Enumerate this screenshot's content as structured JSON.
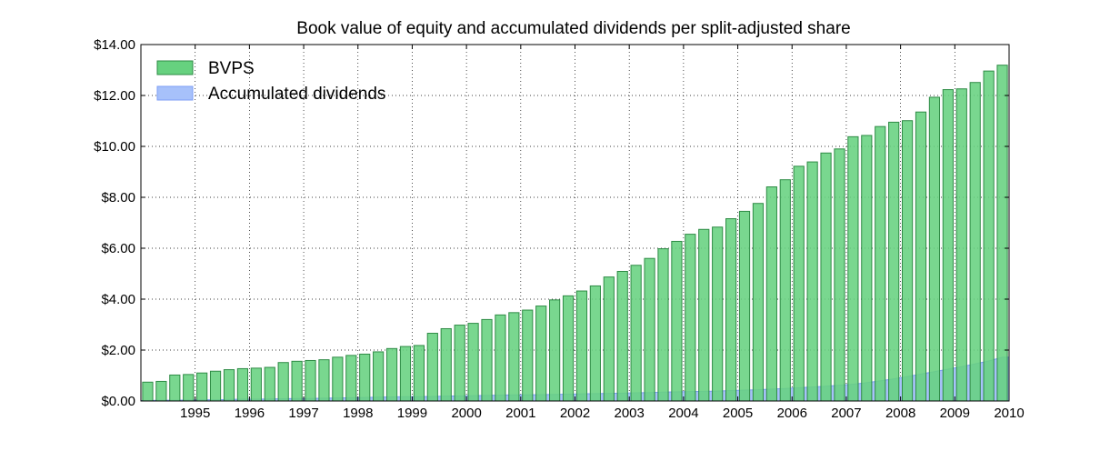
{
  "chart_data": {
    "type": "bar",
    "title": "Book value of equity and accumulated dividends per split-adjusted share",
    "xlabel": "",
    "ylabel": "",
    "ylim": [
      0,
      14
    ],
    "yticks": [
      0,
      2,
      4,
      6,
      8,
      10,
      12,
      14
    ],
    "ytick_labels": [
      "$0.00",
      "$2.00",
      "$4.00",
      "$6.00",
      "$8.00",
      "$10.00",
      "$12.00",
      "$14.00"
    ],
    "xticks": [
      "1995",
      "1996",
      "1997",
      "1998",
      "1999",
      "2000",
      "2001",
      "2002",
      "2003",
      "2004",
      "2005",
      "2006",
      "2007",
      "2008",
      "2009",
      "2010"
    ],
    "grid": true,
    "legend_position": "top-left",
    "colors": {
      "bvps_fill": "#66d17f",
      "bvps_edge": "#2e8b45",
      "dividends_fill": "#a7c1fa",
      "dividends_edge": "#7e9ef5"
    },
    "x_range": [
      "1994 Q1",
      "2010 Q1"
    ],
    "x": [
      "1994 Q1",
      "1994 Q2",
      "1994 Q3",
      "1994 Q4",
      "1995 Q1",
      "1995 Q2",
      "1995 Q3",
      "1995 Q4",
      "1996 Q1",
      "1996 Q2",
      "1996 Q3",
      "1996 Q4",
      "1997 Q1",
      "1997 Q2",
      "1997 Q3",
      "1997 Q4",
      "1998 Q1",
      "1998 Q2",
      "1998 Q3",
      "1998 Q4",
      "1999 Q1",
      "1999 Q2",
      "1999 Q3",
      "1999 Q4",
      "2000 Q1",
      "2000 Q2",
      "2000 Q3",
      "2000 Q4",
      "2001 Q1",
      "2001 Q2",
      "2001 Q3",
      "2001 Q4",
      "2002 Q1",
      "2002 Q2",
      "2002 Q3",
      "2002 Q4",
      "2003 Q1",
      "2003 Q2",
      "2003 Q3",
      "2003 Q4",
      "2004 Q1",
      "2004 Q2",
      "2004 Q3",
      "2004 Q4",
      "2005 Q1",
      "2005 Q2",
      "2005 Q3",
      "2005 Q4",
      "2006 Q1",
      "2006 Q2",
      "2006 Q3",
      "2006 Q4",
      "2007 Q1",
      "2007 Q2",
      "2007 Q3",
      "2007 Q4",
      "2008 Q1",
      "2008 Q2",
      "2008 Q3",
      "2008 Q4",
      "2009 Q1",
      "2009 Q2",
      "2009 Q3",
      "2009 Q4"
    ],
    "series": [
      {
        "name": "BVPS",
        "kind": "bar",
        "values": [
          0.74,
          0.77,
          1.02,
          1.04,
          1.1,
          1.17,
          1.23,
          1.27,
          1.29,
          1.32,
          1.51,
          1.56,
          1.59,
          1.62,
          1.72,
          1.79,
          1.84,
          1.93,
          2.06,
          2.14,
          2.18,
          2.66,
          2.84,
          2.98,
          3.05,
          3.2,
          3.38,
          3.47,
          3.57,
          3.73,
          3.97,
          4.13,
          4.32,
          4.52,
          4.87,
          5.09,
          5.33,
          5.6,
          5.98,
          6.27,
          6.55,
          6.74,
          6.83,
          7.16,
          7.45,
          7.76,
          8.41,
          8.69,
          9.22,
          9.39,
          9.74,
          9.9,
          10.38,
          10.43,
          10.78,
          10.95,
          11.01,
          11.35,
          11.93,
          12.23,
          12.26,
          12.51,
          12.96,
          13.19
        ]
      },
      {
        "name": "Accumulated dividends",
        "kind": "area",
        "values": [
          0.02,
          0.03,
          0.03,
          0.04,
          0.05,
          0.05,
          0.06,
          0.07,
          0.07,
          0.08,
          0.09,
          0.1,
          0.1,
          0.11,
          0.12,
          0.13,
          0.14,
          0.15,
          0.16,
          0.17,
          0.17,
          0.18,
          0.19,
          0.2,
          0.21,
          0.22,
          0.23,
          0.24,
          0.24,
          0.25,
          0.26,
          0.27,
          0.28,
          0.29,
          0.3,
          0.31,
          0.32,
          0.33,
          0.35,
          0.36,
          0.37,
          0.38,
          0.39,
          0.41,
          0.43,
          0.44,
          0.47,
          0.49,
          0.52,
          0.55,
          0.58,
          0.62,
          0.66,
          0.72,
          0.79,
          0.87,
          0.96,
          1.06,
          1.15,
          1.25,
          1.35,
          1.46,
          1.57,
          1.72
        ]
      }
    ]
  }
}
